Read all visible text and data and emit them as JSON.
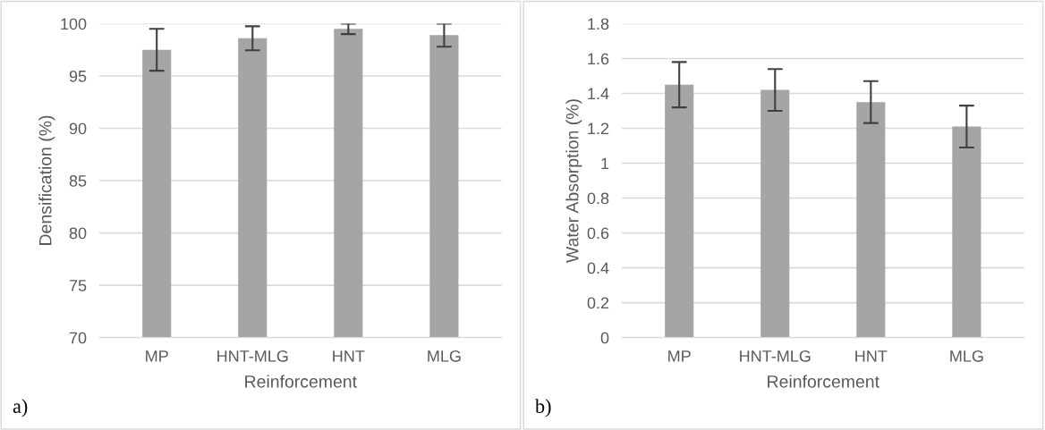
{
  "chart_data": [
    {
      "type": "bar",
      "xlabel": "Reinforcement",
      "ylabel": "Densification (%)",
      "categories": [
        "MP",
        "HNT-MLG",
        "HNT",
        "MLG"
      ],
      "values": [
        97.5,
        98.6,
        99.5,
        98.9
      ],
      "errors": [
        2,
        1.15,
        0.5,
        1.1
      ],
      "color": "#a5a5a5",
      "ylim": [
        70,
        100
      ],
      "yticks": [
        70,
        75,
        80,
        85,
        90,
        95,
        100
      ],
      "grid": "y",
      "annotations": [
        "a)"
      ]
    },
    {
      "type": "bar",
      "xlabel": "Reinforcement",
      "ylabel": "Water Absorption (%)",
      "categories": [
        "MP",
        "HNT-MLG",
        "HNT",
        "MLG"
      ],
      "values": [
        1.45,
        1.42,
        1.35,
        1.21
      ],
      "errors": [
        0.13,
        0.12,
        0.12,
        0.12
      ],
      "color": "#a5a5a5",
      "ylim": [
        0,
        1.8
      ],
      "yticks": [
        0,
        0.2,
        0.4,
        0.6,
        0.8,
        1,
        1.2,
        1.4,
        1.6,
        1.8
      ],
      "grid": "y",
      "annotations": [
        "b)"
      ]
    }
  ]
}
